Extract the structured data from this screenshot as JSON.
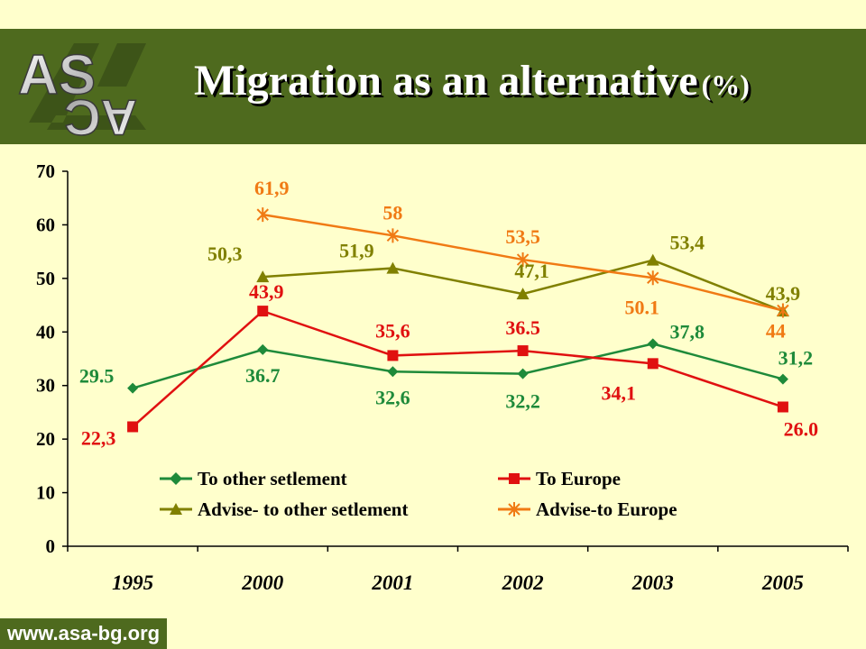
{
  "header": {
    "title": "Migration as an alternative",
    "unit": "(%)",
    "logo_text": "ASCA"
  },
  "footer": {
    "url": "www.asa-bg.org"
  },
  "colors": {
    "header_bg": "#4E6A1E",
    "background": "#FFFFCC",
    "to_other_setlement": "#1E8A3A",
    "to_europe": "#E01010",
    "advise_to_other_setlement": "#808000",
    "advise_to_europe": "#F07A14"
  },
  "chart_data": {
    "type": "line",
    "title": "Migration as an alternative (%)",
    "categories": [
      "1995",
      "2000",
      "2001",
      "2002",
      "2003",
      "2005"
    ],
    "ylim": [
      0,
      70
    ],
    "yticks": [
      "0",
      "10",
      "20",
      "30",
      "40",
      "50",
      "60",
      "70"
    ],
    "grid": false,
    "legend_position": "bottom-inside",
    "series": [
      {
        "name": "To other setlement",
        "marker": "diamond",
        "values": [
          29.5,
          36.7,
          32.6,
          32.2,
          37.8,
          31.2
        ],
        "labels": [
          "29.5",
          "36.7",
          "32,6",
          "32,2",
          "37,8",
          "31,2"
        ]
      },
      {
        "name": "To Europe",
        "marker": "square",
        "values": [
          22.3,
          43.9,
          35.6,
          36.5,
          34.1,
          26.0
        ],
        "labels": [
          "22,3",
          "43,9",
          "35,6",
          "36.5",
          "34,1",
          "26.0"
        ]
      },
      {
        "name": "Advise- to other setlement",
        "marker": "triangle",
        "values": [
          null,
          50.3,
          51.9,
          47.1,
          53.4,
          43.9
        ],
        "labels": [
          "",
          "50,3",
          "51,9",
          "47,1",
          "53,4",
          "43,9"
        ]
      },
      {
        "name": "Advise-to Europe",
        "marker": "star",
        "values": [
          null,
          61.9,
          58,
          53.5,
          50.1,
          44
        ],
        "labels": [
          "",
          "61,9",
          "58",
          "53,5",
          "50.1",
          "44"
        ]
      }
    ]
  }
}
